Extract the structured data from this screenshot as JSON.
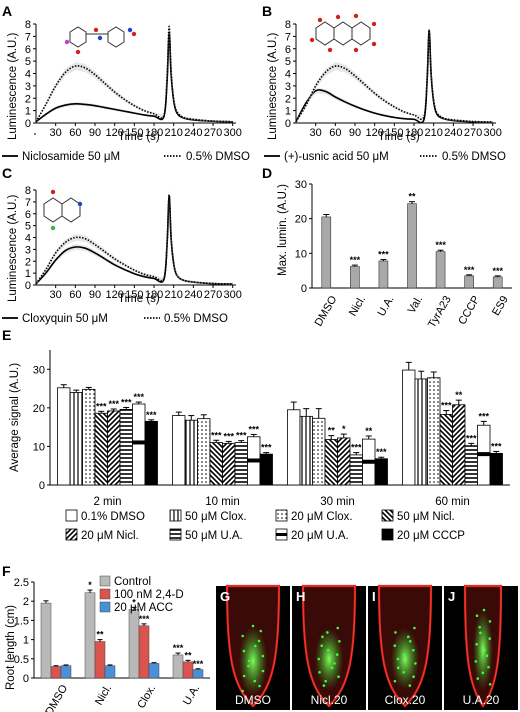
{
  "panel_labels": [
    "A",
    "B",
    "C",
    "D",
    "E",
    "F",
    "G",
    "H",
    "I",
    "J"
  ],
  "microscopy_labels": [
    "DMSO",
    "Nicl.20",
    "Clox.20",
    "U.A.20"
  ],
  "colors": {
    "treated": "#000000",
    "dmso": "#000000",
    "bar_gray": "#a9a9a9",
    "control": "#b9b9b9",
    "d24": "#d9534f",
    "acc": "#4a90d9",
    "root_red": "#e0201a",
    "gfp_green": "#3cff3c"
  },
  "chart_data": [
    {
      "panel": "A",
      "type": "line",
      "ylabel": "Luminescence (A.U.)",
      "xlabel": "Time (s)",
      "xticks": [
        30,
        60,
        90,
        120,
        150,
        180,
        210,
        240,
        270,
        300
      ],
      "yticks": [
        0,
        1,
        2,
        3,
        4,
        5,
        6,
        7,
        8
      ],
      "xlim": [
        0,
        305
      ],
      "ylim": [
        0,
        8
      ],
      "series": [
        {
          "name": "Niclosamide 50 μM",
          "style": "solid",
          "x": [
            0,
            15,
            30,
            45,
            60,
            75,
            90,
            105,
            120,
            135,
            150,
            165,
            180,
            195,
            200,
            203,
            206,
            210,
            215,
            225,
            240,
            270,
            300
          ],
          "y": [
            0.1,
            0.7,
            1.2,
            1.45,
            1.55,
            1.5,
            1.4,
            1.25,
            1.1,
            0.95,
            0.8,
            0.65,
            0.55,
            0.5,
            3.5,
            7.3,
            4.0,
            1.8,
            0.8,
            0.4,
            0.25,
            0.15,
            0.1
          ]
        },
        {
          "name": "0.5% DMSO",
          "style": "dotted",
          "x": [
            0,
            15,
            30,
            45,
            60,
            75,
            90,
            105,
            120,
            135,
            150,
            165,
            180,
            195,
            200,
            203,
            206,
            210,
            215,
            225,
            240,
            270,
            300
          ],
          "y": [
            0.1,
            1.5,
            3.0,
            4.1,
            4.6,
            4.45,
            3.9,
            3.2,
            2.5,
            1.9,
            1.4,
            1.0,
            0.75,
            0.6,
            3.8,
            7.8,
            4.2,
            1.9,
            0.9,
            0.45,
            0.3,
            0.15,
            0.1
          ]
        }
      ]
    },
    {
      "panel": "B",
      "type": "line",
      "ylabel": "Luminescence (A.U.)",
      "xlabel": "Time (s)",
      "xticks": [
        30,
        60,
        90,
        120,
        150,
        180,
        210,
        240,
        270,
        300
      ],
      "yticks": [
        0,
        1,
        2,
        3,
        4,
        5,
        6,
        7,
        8
      ],
      "xlim": [
        0,
        305
      ],
      "ylim": [
        0,
        8
      ],
      "series": [
        {
          "name": "(+)-usnic acid 50 μM",
          "style": "solid",
          "x": [
            0,
            15,
            30,
            45,
            60,
            75,
            90,
            105,
            120,
            135,
            150,
            165,
            180,
            195,
            200,
            203,
            206,
            210,
            215,
            225,
            240,
            270,
            300
          ],
          "y": [
            0.1,
            1.6,
            2.6,
            2.55,
            2.1,
            1.7,
            1.35,
            1.05,
            0.8,
            0.6,
            0.45,
            0.35,
            0.3,
            0.25,
            3.5,
            7.5,
            4.0,
            1.7,
            0.7,
            0.35,
            0.2,
            0.1,
            0.05
          ]
        },
        {
          "name": "0.5% DMSO",
          "style": "dotted",
          "x": [
            0,
            15,
            30,
            45,
            60,
            75,
            90,
            105,
            120,
            135,
            150,
            165,
            180,
            195,
            200,
            203,
            206,
            210,
            215,
            225,
            240,
            270,
            300
          ],
          "y": [
            0.1,
            1.4,
            3.0,
            4.1,
            4.6,
            4.4,
            3.8,
            3.1,
            2.4,
            1.8,
            1.3,
            0.9,
            0.65,
            0.5,
            3.6,
            7.4,
            4.0,
            1.8,
            0.8,
            0.4,
            0.25,
            0.12,
            0.08
          ]
        }
      ]
    },
    {
      "panel": "C",
      "type": "line",
      "ylabel": "Luminescence (A.U.)",
      "xlabel": "Time (s)",
      "xticks": [
        30,
        60,
        90,
        120,
        150,
        180,
        210,
        240,
        270,
        300
      ],
      "yticks": [
        0,
        1,
        2,
        3,
        4,
        5,
        6,
        7,
        8
      ],
      "xlim": [
        0,
        305
      ],
      "ylim": [
        0,
        8
      ],
      "series": [
        {
          "name": "Cloxyquin 50 μM",
          "style": "solid",
          "x": [
            0,
            15,
            30,
            45,
            60,
            75,
            90,
            105,
            120,
            135,
            150,
            165,
            180,
            195,
            200,
            203,
            206,
            210,
            215,
            225,
            240,
            270,
            300
          ],
          "y": [
            0.1,
            1.0,
            2.1,
            2.9,
            3.2,
            3.1,
            2.7,
            2.2,
            1.7,
            1.3,
            0.95,
            0.7,
            0.55,
            0.45,
            3.6,
            7.5,
            4.0,
            1.8,
            0.8,
            0.4,
            0.25,
            0.12,
            0.08
          ]
        },
        {
          "name": "0.5% DMSO",
          "style": "dotted",
          "x": [
            0,
            15,
            30,
            45,
            60,
            75,
            90,
            105,
            120,
            135,
            150,
            165,
            180,
            195,
            200,
            203,
            206,
            210,
            215,
            225,
            240,
            270,
            300
          ],
          "y": [
            0.1,
            1.3,
            2.7,
            3.6,
            4.0,
            3.9,
            3.4,
            2.8,
            2.2,
            1.7,
            1.25,
            0.9,
            0.7,
            0.55,
            3.6,
            7.6,
            4.0,
            1.8,
            0.8,
            0.4,
            0.25,
            0.12,
            0.08
          ]
        }
      ]
    },
    {
      "panel": "D",
      "type": "bar",
      "ylabel": "Max. lumin. (A.U.)",
      "categories": [
        "DMSO",
        "Nicl.",
        "U.A.",
        "Val.",
        "TyrA23",
        "CCCP",
        "ES9"
      ],
      "values": [
        20.5,
        6.2,
        7.8,
        24.3,
        10.5,
        3.5,
        3.2
      ],
      "errors": [
        0.7,
        0.4,
        0.4,
        0.6,
        0.4,
        0.3,
        0.3
      ],
      "significance": [
        "",
        "***",
        "***",
        "**",
        "***",
        "***",
        "***"
      ],
      "yticks": [
        0,
        10,
        20,
        30
      ],
      "ylim": [
        0,
        30
      ]
    },
    {
      "panel": "E",
      "type": "bar",
      "ylabel": "Average signal (A.U.)",
      "categories": [
        "2 min",
        "10 min",
        "30 min",
        "60 min"
      ],
      "yticks": [
        0,
        10,
        20,
        30
      ],
      "ylim": [
        0,
        35
      ],
      "series": [
        {
          "name": "0.1% DMSO",
          "pattern": "white",
          "values": [
            25.2,
            18.0,
            19.5,
            29.8
          ],
          "errors": [
            0.8,
            0.9,
            2.0,
            2.0
          ],
          "sig": [
            "",
            "",
            "",
            ""
          ]
        },
        {
          "name": "50 μM Clox.",
          "pattern": "vlines",
          "values": [
            24.0,
            16.8,
            17.8,
            27.5
          ],
          "errors": [
            0.6,
            1.2,
            2.0,
            2.0
          ],
          "sig": [
            "",
            "",
            "",
            ""
          ]
        },
        {
          "name": "20 μM Clox.",
          "pattern": "dots",
          "values": [
            24.8,
            17.2,
            17.3,
            27.8
          ],
          "errors": [
            0.5,
            1.0,
            2.5,
            1.5
          ],
          "sig": [
            "",
            "",
            "",
            ""
          ]
        },
        {
          "name": "50 μM Nicl.",
          "pattern": "diag_back",
          "values": [
            18.6,
            11.0,
            11.8,
            18.3
          ],
          "errors": [
            0.5,
            0.6,
            1.0,
            1.0
          ],
          "sig": [
            "***",
            "***",
            "**",
            "***"
          ]
        },
        {
          "name": "20 μM Nicl.",
          "pattern": "diag_fwd",
          "values": [
            19.2,
            10.8,
            12.2,
            20.8
          ],
          "errors": [
            0.5,
            0.5,
            1.0,
            1.2
          ],
          "sig": [
            "***",
            "***",
            "*",
            "**"
          ]
        },
        {
          "name": "50 μM U.A.",
          "pattern": "hlines",
          "values": [
            19.6,
            11.0,
            7.8,
            10.2
          ],
          "errors": [
            0.5,
            0.5,
            0.6,
            0.6
          ],
          "sig": [
            "***",
            "***",
            "***",
            "***"
          ]
        },
        {
          "name": "20 μM U.A.",
          "pattern": "white_hbar",
          "values": [
            21.0,
            12.5,
            11.9,
            15.5
          ],
          "errors": [
            0.5,
            0.6,
            0.8,
            1.0
          ],
          "sig": [
            "***",
            "***",
            "**",
            "***"
          ]
        },
        {
          "name": "20 μM CCCP",
          "pattern": "black",
          "values": [
            16.5,
            8.0,
            6.8,
            8.2
          ],
          "errors": [
            0.4,
            0.4,
            0.4,
            0.5
          ],
          "sig": [
            "***",
            "***",
            "***",
            "***"
          ]
        }
      ]
    },
    {
      "panel": "F",
      "type": "bar",
      "ylabel": "Root length (cm)",
      "categories": [
        "DMSO",
        "Nicl.",
        "Clox.",
        "U.A."
      ],
      "yticks": [
        0,
        0.5,
        1,
        1.5,
        2,
        2.5
      ],
      "ytick_labels": [
        "0",
        "0.5",
        "1",
        "1.5",
        "2",
        "2.5"
      ],
      "ylim": [
        0,
        2.5
      ],
      "series": [
        {
          "name": "Control",
          "color": "#b9b9b9",
          "values": [
            1.95,
            2.22,
            1.78,
            0.6
          ],
          "errors": [
            0.06,
            0.07,
            0.06,
            0.05
          ],
          "sig": [
            "",
            "*",
            "*",
            "***"
          ]
        },
        {
          "name": "100 nM 2,4-D",
          "color": "#d9534f",
          "values": [
            0.3,
            0.95,
            1.36,
            0.42
          ],
          "errors": [
            0.02,
            0.05,
            0.05,
            0.04
          ],
          "sig": [
            "",
            "**",
            "***",
            "**"
          ]
        },
        {
          "name": "20 μM ACC",
          "color": "#4a90d9",
          "values": [
            0.32,
            0.32,
            0.38,
            0.22
          ],
          "errors": [
            0.02,
            0.02,
            0.02,
            0.02
          ],
          "sig": [
            "",
            "",
            "",
            "***"
          ]
        }
      ]
    }
  ]
}
